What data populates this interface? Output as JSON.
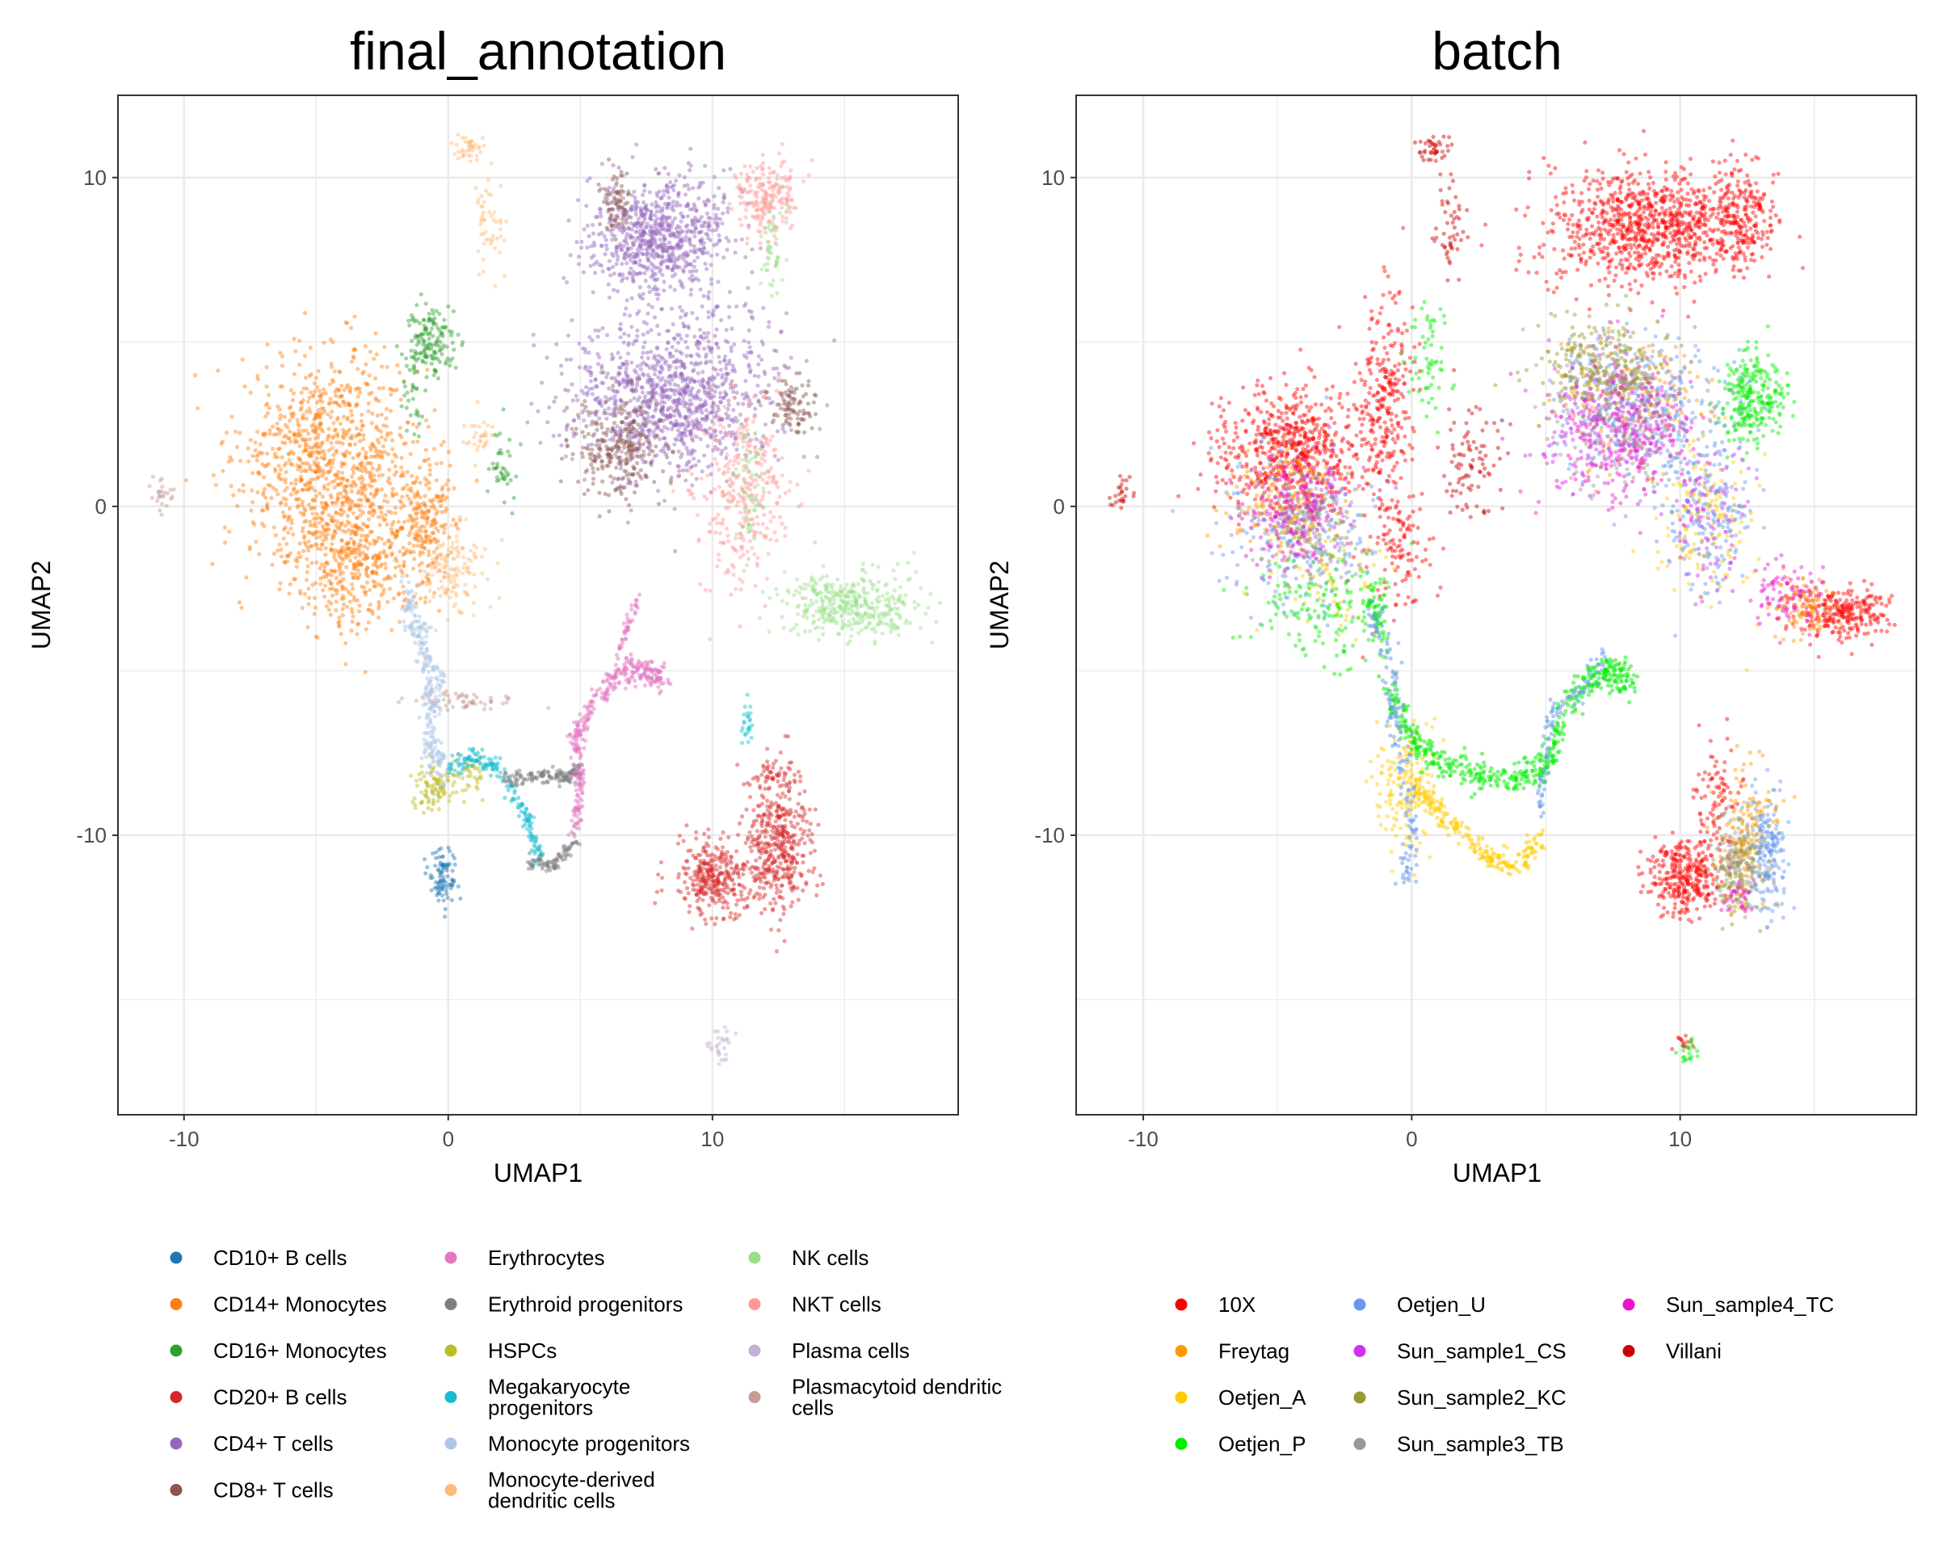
{
  "chart_data": [
    {
      "type": "scatter",
      "title": "final_annotation",
      "xlabel": "UMAP1",
      "ylabel": "UMAP2",
      "xlim": [
        -12.5,
        19.3
      ],
      "ylim": [
        -18.5,
        12.5
      ],
      "xticks": [
        -10,
        0,
        10
      ],
      "yticks": [
        -10,
        0,
        10
      ],
      "grid": true,
      "legend_position": "bottom",
      "legend_columns": 3,
      "legend": [
        {
          "label": "CD10+ B cells",
          "color": "#1f77b4"
        },
        {
          "label": "CD14+ Monocytes",
          "color": "#ff7f0e"
        },
        {
          "label": "CD16+ Monocytes",
          "color": "#2ca02c"
        },
        {
          "label": "CD20+ B cells",
          "color": "#d62728"
        },
        {
          "label": "CD4+ T cells",
          "color": "#9467bd"
        },
        {
          "label": "CD8+ T cells",
          "color": "#8c564b"
        },
        {
          "label": "Erythrocytes",
          "color": "#e377c2"
        },
        {
          "label": "Erythroid progenitors",
          "color": "#7f7f7f"
        },
        {
          "label": "HSPCs",
          "color": "#bcbd22"
        },
        {
          "label": "Megakaryocyte progenitors",
          "color": "#17becf"
        },
        {
          "label": "Monocyte progenitors",
          "color": "#aec7e8"
        },
        {
          "label": "Monocyte-derived dendritic cells",
          "color": "#ffbb78"
        },
        {
          "label": "NK cells",
          "color": "#98df8a"
        },
        {
          "label": "NKT cells",
          "color": "#ff9896"
        },
        {
          "label": "Plasma cells",
          "color": "#c5b0d5"
        },
        {
          "label": "Plasmacytoid dendritic cells",
          "color": "#c49c94"
        }
      ],
      "clusters": [
        {
          "group": "CD14+ Monocytes",
          "x": -4.5,
          "y": 1.5,
          "sx": 1.7,
          "sy": 1.6,
          "n": 900
        },
        {
          "group": "CD14+ Monocytes",
          "x": -3.5,
          "y": -1.5,
          "sx": 1.3,
          "sy": 1.1,
          "n": 450
        },
        {
          "group": "CD14+ Monocytes",
          "x": -0.8,
          "y": -0.5,
          "sx": 0.6,
          "sy": 0.9,
          "n": 200
        },
        {
          "group": "CD16+ Monocytes",
          "x": -0.7,
          "y": 5.0,
          "sx": 0.5,
          "sy": 0.5,
          "n": 150
        },
        {
          "group": "CD16+ Monocytes",
          "x": -1.3,
          "y": 3.3,
          "sx": 0.2,
          "sy": 0.7,
          "n": 30
        },
        {
          "group": "CD16+ Monocytes",
          "x": 2.0,
          "y": 1.4,
          "sx": 0.3,
          "sy": 0.6,
          "n": 40
        },
        {
          "group": "Monocyte-derived dendritic cells",
          "x": 0.7,
          "y": 10.9,
          "sx": 0.3,
          "sy": 0.2,
          "n": 40
        },
        {
          "group": "Monocyte-derived dendritic cells",
          "x": 1.5,
          "y": 8.5,
          "sx": 0.25,
          "sy": 0.7,
          "n": 50
        },
        {
          "group": "Monocyte-derived dendritic cells",
          "x": 1.2,
          "y": 2.2,
          "sx": 0.3,
          "sy": 0.3,
          "n": 30
        },
        {
          "group": "Monocyte-derived dendritic cells",
          "x": 0.2,
          "y": -2.0,
          "sx": 0.6,
          "sy": 0.7,
          "n": 120
        },
        {
          "group": "Plasmacytoid dendritic cells",
          "x": -10.8,
          "y": 0.4,
          "sx": 0.25,
          "sy": 0.25,
          "n": 25
        },
        {
          "group": "Plasmacytoid dendritic cells",
          "x": 0.5,
          "y": -5.9,
          "sx": 1.1,
          "sy": 0.12,
          "n": 60
        },
        {
          "group": "CD4+ T cells",
          "x": 8.0,
          "y": 8.2,
          "sx": 1.3,
          "sy": 0.9,
          "n": 750
        },
        {
          "group": "CD4+ T cells",
          "x": 8.5,
          "y": 3.3,
          "sx": 2.0,
          "sy": 1.2,
          "n": 1100
        },
        {
          "group": "CD8+ T cells",
          "x": 6.3,
          "y": 9.3,
          "sx": 0.3,
          "sy": 0.5,
          "n": 70
        },
        {
          "group": "CD8+ T cells",
          "x": 6.5,
          "y": 1.8,
          "sx": 0.8,
          "sy": 0.8,
          "n": 260
        },
        {
          "group": "CD8+ T cells",
          "x": 13.0,
          "y": 3.0,
          "sx": 0.4,
          "sy": 0.5,
          "n": 90
        },
        {
          "group": "NKT cells",
          "x": 12.0,
          "y": 9.3,
          "sx": 0.6,
          "sy": 0.6,
          "n": 200
        },
        {
          "group": "NKT cells",
          "x": 11.2,
          "y": 0.5,
          "sx": 0.9,
          "sy": 1.4,
          "n": 320
        },
        {
          "group": "NK cells",
          "x": 12.3,
          "y": 7.8,
          "sx": 0.3,
          "sy": 0.8,
          "n": 50
        },
        {
          "group": "NK cells",
          "x": 11.4,
          "y": 0.5,
          "sx": 0.3,
          "sy": 1.0,
          "n": 60
        },
        {
          "group": "NK cells",
          "x": 15.3,
          "y": -3.0,
          "sx": 1.3,
          "sy": 0.5,
          "n": 380
        },
        {
          "group": "CD20+ B cells",
          "x": 10.0,
          "y": -11.3,
          "sx": 0.7,
          "sy": 0.6,
          "n": 320
        },
        {
          "group": "CD20+ B cells",
          "x": 12.5,
          "y": -10.3,
          "sx": 0.6,
          "sy": 1.0,
          "n": 420
        },
        {
          "group": "CD20+ B cells",
          "x": 12.3,
          "y": -8.2,
          "sx": 0.5,
          "sy": 0.3,
          "n": 50
        },
        {
          "group": "CD10+ B cells",
          "x": -0.2,
          "y": -11.3,
          "sx": 0.25,
          "sy": 0.4,
          "n": 90
        },
        {
          "group": "HSPCs",
          "x": -0.5,
          "y": -8.5,
          "sx": 0.4,
          "sy": 0.35,
          "n": 100
        },
        {
          "group": "HSPCs",
          "x": 0.8,
          "y": -8.1,
          "sx": 0.25,
          "sy": 0.3,
          "n": 40
        },
        {
          "group": "Plasma cells",
          "x": 10.3,
          "y": -16.4,
          "sx": 0.25,
          "sy": 0.25,
          "n": 30
        },
        {
          "group": "Megakaryocyte progenitors",
          "x": 11.3,
          "y": -6.5,
          "sx": 0.12,
          "sy": 0.35,
          "n": 25
        }
      ],
      "paths": [
        {
          "group": "Monocyte progenitors",
          "points": [
            [
              -1.5,
              -2.8
            ],
            [
              -1.0,
              -4.2
            ],
            [
              -0.5,
              -5.5
            ],
            [
              -0.8,
              -7.0
            ],
            [
              -0.2,
              -8.0
            ]
          ],
          "n": 260,
          "spread": 0.3
        },
        {
          "group": "Megakaryocyte progenitors",
          "points": [
            [
              0.0,
              -8.0
            ],
            [
              1.0,
              -7.6
            ],
            [
              2.0,
              -8.1
            ],
            [
              3.0,
              -9.5
            ],
            [
              3.5,
              -10.7
            ]
          ],
          "n": 170,
          "spread": 0.15
        },
        {
          "group": "Erythroid progenitors",
          "points": [
            [
              2.0,
              -8.3
            ],
            [
              3.5,
              -8.2
            ],
            [
              4.5,
              -8.2
            ],
            [
              5.0,
              -8.0
            ]
          ],
          "n": 140,
          "spread": 0.12
        },
        {
          "group": "Erythroid progenitors",
          "points": [
            [
              3.0,
              -10.8
            ],
            [
              4.0,
              -10.9
            ],
            [
              4.8,
              -10.2
            ]
          ],
          "n": 80,
          "spread": 0.12
        },
        {
          "group": "Erythrocytes",
          "points": [
            [
              4.8,
              -9.8
            ],
            [
              5.0,
              -8.5
            ],
            [
              4.8,
              -7.0
            ],
            [
              5.5,
              -6.0
            ],
            [
              6.5,
              -5.0
            ],
            [
              7.5,
              -5.0
            ],
            [
              8.2,
              -5.3
            ]
          ],
          "n": 330,
          "spread": 0.2
        },
        {
          "group": "Erythrocytes",
          "points": [
            [
              6.4,
              -4.5
            ],
            [
              7.2,
              -2.8
            ]
          ],
          "n": 40,
          "spread": 0.1
        }
      ]
    },
    {
      "type": "scatter",
      "title": "batch",
      "xlabel": "UMAP1",
      "ylabel": "UMAP2",
      "xlim": [
        -12.5,
        18.8
      ],
      "ylim": [
        -18.5,
        12.5
      ],
      "xticks": [
        -10,
        0,
        10
      ],
      "yticks": [
        -10,
        0,
        10
      ],
      "grid": true,
      "legend_position": "bottom",
      "legend_columns": 3,
      "legend": [
        {
          "label": "10X",
          "color": "#ff0000"
        },
        {
          "label": "Freytag",
          "color": "#ff9900"
        },
        {
          "label": "Oetjen_A",
          "color": "#ffcc00"
        },
        {
          "label": "Oetjen_P",
          "color": "#00ee00"
        },
        {
          "label": "Oetjen_U",
          "color": "#6699ee"
        },
        {
          "label": "Sun_sample1_CS",
          "color": "#cc33ee"
        },
        {
          "label": "Sun_sample2_KC",
          "color": "#999933"
        },
        {
          "label": "Sun_sample3_TB",
          "color": "#999999"
        },
        {
          "label": "Sun_sample4_TC",
          "color": "#ee11cc"
        },
        {
          "label": "Villani",
          "color": "#cc0000"
        }
      ],
      "clusters": [
        {
          "group": "Villani",
          "x": 0.8,
          "y": 10.9,
          "sx": 0.3,
          "sy": 0.2,
          "n": 40
        },
        {
          "group": "Villani",
          "x": 1.5,
          "y": 8.5,
          "sx": 0.25,
          "sy": 0.7,
          "n": 50
        },
        {
          "group": "Villani",
          "x": 2.2,
          "y": 1.3,
          "sx": 0.6,
          "sy": 0.9,
          "n": 90
        },
        {
          "group": "Villani",
          "x": -10.8,
          "y": 0.4,
          "sx": 0.25,
          "sy": 0.25,
          "n": 25
        },
        {
          "group": "10X",
          "x": 8.8,
          "y": 8.5,
          "sx": 1.8,
          "sy": 0.9,
          "n": 900
        },
        {
          "group": "10X",
          "x": 12.3,
          "y": 8.8,
          "sx": 0.6,
          "sy": 0.8,
          "n": 200
        },
        {
          "group": "10X",
          "x": -4.5,
          "y": 1.7,
          "sx": 1.4,
          "sy": 0.9,
          "n": 650
        },
        {
          "group": "10X",
          "x": -1.0,
          "y": 3.5,
          "sx": 0.5,
          "sy": 1.6,
          "n": 250
        },
        {
          "group": "10X",
          "x": -0.5,
          "y": -1.2,
          "sx": 0.6,
          "sy": 1.0,
          "n": 120
        },
        {
          "group": "10X",
          "x": 16.0,
          "y": -3.2,
          "sx": 0.9,
          "sy": 0.4,
          "n": 260
        },
        {
          "group": "10X",
          "x": 10.2,
          "y": -11.3,
          "sx": 0.7,
          "sy": 0.6,
          "n": 320
        },
        {
          "group": "10X",
          "x": 11.3,
          "y": -9.0,
          "sx": 0.4,
          "sy": 0.9,
          "n": 90
        },
        {
          "group": "10X",
          "x": 10.1,
          "y": -16.3,
          "sx": 0.2,
          "sy": 0.2,
          "n": 15
        },
        {
          "group": "Freytag",
          "x": -4.8,
          "y": 0.3,
          "sx": 1.0,
          "sy": 0.8,
          "n": 160
        },
        {
          "group": "Freytag",
          "x": 8.0,
          "y": 3.2,
          "sx": 1.4,
          "sy": 1.0,
          "n": 200
        },
        {
          "group": "Freytag",
          "x": 12.5,
          "y": -10.0,
          "sx": 0.5,
          "sy": 1.0,
          "n": 160
        },
        {
          "group": "Freytag",
          "x": 14.5,
          "y": -3.0,
          "sx": 0.6,
          "sy": 0.5,
          "n": 100
        },
        {
          "group": "Oetjen_A",
          "x": 11.0,
          "y": -0.5,
          "sx": 0.9,
          "sy": 1.2,
          "n": 140
        },
        {
          "group": "Oetjen_A",
          "x": -0.3,
          "y": -8.5,
          "sx": 0.6,
          "sy": 1.0,
          "n": 160
        },
        {
          "group": "Oetjen_A",
          "x": -3.0,
          "y": -2.0,
          "sx": 1.0,
          "sy": 0.8,
          "n": 80
        },
        {
          "group": "Oetjen_P",
          "x": 12.7,
          "y": 3.3,
          "sx": 0.6,
          "sy": 0.7,
          "n": 260
        },
        {
          "group": "Oetjen_P",
          "x": -3.5,
          "y": -3.0,
          "sx": 1.2,
          "sy": 0.9,
          "n": 150
        },
        {
          "group": "Oetjen_P",
          "x": 0.7,
          "y": 4.5,
          "sx": 0.4,
          "sy": 0.9,
          "n": 60
        },
        {
          "group": "Oetjen_P",
          "x": 10.3,
          "y": -16.6,
          "sx": 0.2,
          "sy": 0.2,
          "n": 20
        },
        {
          "group": "Oetjen_U",
          "x": 8.5,
          "y": 3.0,
          "sx": 1.6,
          "sy": 1.1,
          "n": 350
        },
        {
          "group": "Oetjen_U",
          "x": -4.0,
          "y": -1.0,
          "sx": 1.3,
          "sy": 1.2,
          "n": 220
        },
        {
          "group": "Oetjen_U",
          "x": 13.2,
          "y": -10.5,
          "sx": 0.4,
          "sy": 1.0,
          "n": 200
        },
        {
          "group": "Oetjen_U",
          "x": 11.0,
          "y": -0.5,
          "sx": 0.8,
          "sy": 1.2,
          "n": 180
        },
        {
          "group": "Sun_sample1_CS",
          "x": 7.5,
          "y": 2.8,
          "sx": 1.3,
          "sy": 1.0,
          "n": 260
        },
        {
          "group": "Sun_sample1_CS",
          "x": -4.0,
          "y": 0.0,
          "sx": 1.0,
          "sy": 0.9,
          "n": 140
        },
        {
          "group": "Sun_sample1_CS",
          "x": 11.0,
          "y": -0.5,
          "sx": 0.7,
          "sy": 1.1,
          "n": 100
        },
        {
          "group": "Sun_sample2_KC",
          "x": 7.2,
          "y": 4.2,
          "sx": 1.2,
          "sy": 0.7,
          "n": 280
        },
        {
          "group": "Sun_sample2_KC",
          "x": 12.2,
          "y": -11.0,
          "sx": 0.5,
          "sy": 0.7,
          "n": 130
        },
        {
          "group": "Sun_sample2_KC",
          "x": -4.2,
          "y": -0.5,
          "sx": 0.8,
          "sy": 0.7,
          "n": 80
        },
        {
          "group": "Sun_sample3_TB",
          "x": 8.0,
          "y": 2.5,
          "sx": 1.4,
          "sy": 1.0,
          "n": 150
        },
        {
          "group": "Sun_sample3_TB",
          "x": 12.0,
          "y": -10.8,
          "sx": 0.4,
          "sy": 0.8,
          "n": 80
        },
        {
          "group": "Sun_sample3_TB",
          "x": -3.5,
          "y": -1.0,
          "sx": 1.0,
          "sy": 0.8,
          "n": 60
        },
        {
          "group": "Sun_sample4_TC",
          "x": 7.8,
          "y": 2.0,
          "sx": 1.3,
          "sy": 1.0,
          "n": 220
        },
        {
          "group": "Sun_sample4_TC",
          "x": -4.5,
          "y": -0.3,
          "sx": 0.9,
          "sy": 0.8,
          "n": 110
        },
        {
          "group": "Sun_sample4_TC",
          "x": 14.0,
          "y": -2.8,
          "sx": 0.6,
          "sy": 0.5,
          "n": 90
        },
        {
          "group": "Sun_sample4_TC",
          "x": 12.2,
          "y": -12.0,
          "sx": 0.3,
          "sy": 0.4,
          "n": 30
        }
      ],
      "paths": [
        {
          "group": "Oetjen_P",
          "points": [
            [
              -1.0,
              -5.5
            ],
            [
              0.0,
              -7.0
            ],
            [
              1.0,
              -7.8
            ],
            [
              2.5,
              -8.2
            ],
            [
              4.0,
              -8.2
            ],
            [
              5.0,
              -8.0
            ],
            [
              5.5,
              -6.5
            ],
            [
              6.5,
              -5.3
            ],
            [
              7.5,
              -5.0
            ],
            [
              8.2,
              -5.3
            ]
          ],
          "n": 520,
          "spread": 0.25
        },
        {
          "group": "Oetjen_P",
          "points": [
            [
              -1.5,
              -2.5
            ],
            [
              -1.0,
              -4.2
            ]
          ],
          "n": 60,
          "spread": 0.3
        },
        {
          "group": "Oetjen_A",
          "points": [
            [
              0.0,
              -8.5
            ],
            [
              1.0,
              -9.2
            ],
            [
              2.0,
              -10.0
            ],
            [
              3.0,
              -10.8
            ],
            [
              4.0,
              -10.9
            ],
            [
              4.8,
              -10.2
            ]
          ],
          "n": 220,
          "spread": 0.2
        },
        {
          "group": "Oetjen_U",
          "points": [
            [
              -1.5,
              -3.0
            ],
            [
              -0.8,
              -5.0
            ],
            [
              -0.5,
              -7.0
            ],
            [
              0.0,
              -9.5
            ],
            [
              -0.2,
              -11.5
            ]
          ],
          "n": 160,
          "spread": 0.3
        },
        {
          "group": "Oetjen_U",
          "points": [
            [
              4.8,
              -9.5
            ],
            [
              5.0,
              -7.5
            ],
            [
              5.2,
              -6.2
            ],
            [
              6.5,
              -5.5
            ],
            [
              7.2,
              -4.5
            ]
          ],
          "n": 90,
          "spread": 0.2
        }
      ]
    }
  ]
}
